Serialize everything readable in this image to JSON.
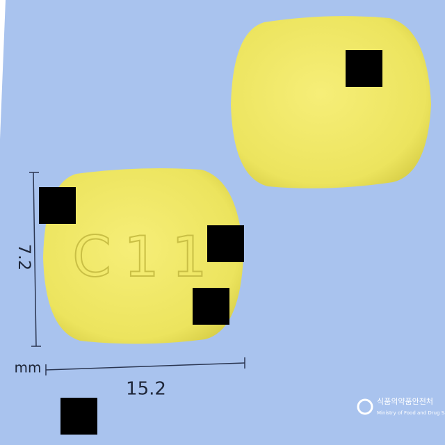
{
  "imprint": "C11",
  "dimensions": {
    "height": 7.2,
    "width": 15.2,
    "unit": "mm"
  },
  "logo": {
    "korean": "식품의약품안전처",
    "english": "Ministry of Food and Drug Safety"
  }
}
